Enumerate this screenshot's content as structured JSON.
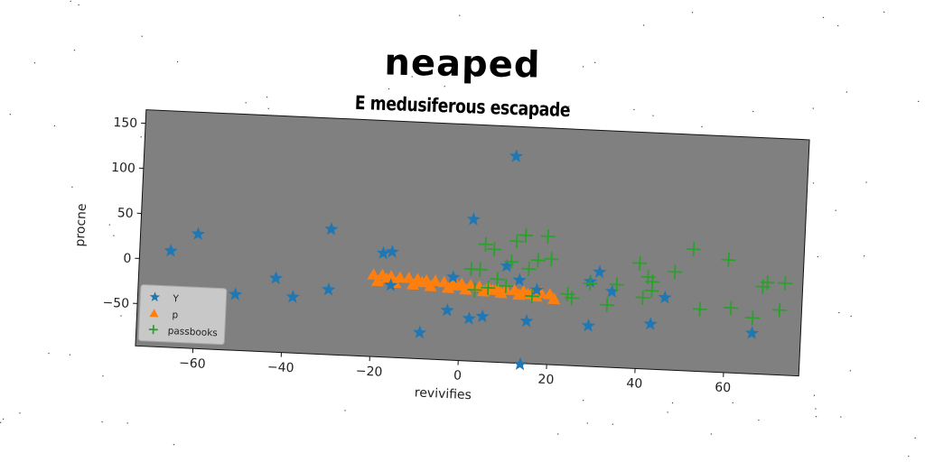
{
  "title": "neaped",
  "subtitle": "E medusiferous escapade",
  "colors": {
    "plot_background": "#808080",
    "Y": "#1f77b4",
    "p": "#ff7f0e",
    "passbooks": "#2ca02c"
  },
  "chart_data": {
    "type": "scatter",
    "xlabel": "revivifies",
    "ylabel": "procne",
    "xlim": [
      -73,
      77
    ],
    "ylim": [
      -97,
      165
    ],
    "xticks": [
      -60,
      -40,
      -20,
      0,
      20,
      40,
      60
    ],
    "yticks": [
      -50,
      0,
      50,
      100,
      150
    ],
    "grid": false,
    "legend_position": "lower-left",
    "series": [
      {
        "name": "Y",
        "marker": "star",
        "points": [
          [
            -66,
            10
          ],
          [
            -60,
            30
          ],
          [
            -51,
            -35
          ],
          [
            -42,
            -15
          ],
          [
            -38,
            -35
          ],
          [
            -30,
            -25
          ],
          [
            -30,
            42
          ],
          [
            -18,
            18
          ],
          [
            -16,
            20
          ],
          [
            -16,
            -17
          ],
          [
            -9,
            -68
          ],
          [
            -3,
            -42
          ],
          [
            -2,
            -5
          ],
          [
            2,
            60
          ],
          [
            2,
            -50
          ],
          [
            5,
            -47
          ],
          [
            10,
            10
          ],
          [
            11,
            132
          ],
          [
            13,
            -5
          ],
          [
            14,
            -98
          ],
          [
            15,
            -50
          ],
          [
            17,
            -15
          ],
          [
            29,
            -3
          ],
          [
            29,
            -52
          ],
          [
            31,
            8
          ],
          [
            34,
            -13
          ],
          [
            43,
            -47
          ],
          [
            46,
            -17
          ],
          [
            66,
            -52
          ]
        ]
      },
      {
        "name": "p",
        "marker": "triangle",
        "points": [
          [
            -20,
            -6
          ],
          [
            -18,
            -6
          ],
          [
            -16,
            -7
          ],
          [
            -14,
            -8
          ],
          [
            -12,
            -8
          ],
          [
            -10,
            -9
          ],
          [
            -8,
            -10
          ],
          [
            -6,
            -10
          ],
          [
            -4,
            -11
          ],
          [
            -2,
            -12
          ],
          [
            0,
            -12
          ],
          [
            2,
            -13
          ],
          [
            4,
            -14
          ],
          [
            6,
            -14
          ],
          [
            8,
            -15
          ],
          [
            10,
            -16
          ],
          [
            12,
            -16
          ],
          [
            14,
            -17
          ],
          [
            16,
            -18
          ],
          [
            18,
            -18
          ],
          [
            20,
            -19
          ],
          [
            -19,
            -13
          ],
          [
            -15,
            -14
          ],
          [
            -11,
            -15
          ],
          [
            -7,
            -16
          ],
          [
            -3,
            -17
          ],
          [
            1,
            -18
          ],
          [
            5,
            -19
          ],
          [
            9,
            -20
          ],
          [
            13,
            -21
          ],
          [
            17,
            -22
          ],
          [
            21,
            -24
          ],
          [
            -17,
            -10
          ],
          [
            -9,
            -12
          ],
          [
            -1,
            -14
          ],
          [
            7,
            -17
          ],
          [
            15,
            -20
          ]
        ]
      },
      {
        "name": "passbooks",
        "marker": "plus",
        "points": [
          [
            2,
            5
          ],
          [
            3,
            -18
          ],
          [
            4,
            5
          ],
          [
            5,
            33
          ],
          [
            6,
            -15
          ],
          [
            7,
            28
          ],
          [
            8,
            -5
          ],
          [
            10,
            -12
          ],
          [
            11,
            15
          ],
          [
            12,
            38
          ],
          [
            14,
            45
          ],
          [
            15,
            8
          ],
          [
            16,
            -22
          ],
          [
            17,
            18
          ],
          [
            19,
            45
          ],
          [
            20,
            20
          ],
          [
            24,
            -18
          ],
          [
            25,
            -22
          ],
          [
            29,
            -5
          ],
          [
            33,
            -28
          ],
          [
            35,
            -5
          ],
          [
            40,
            20
          ],
          [
            41,
            -18
          ],
          [
            42,
            5
          ],
          [
            43,
            -10
          ],
          [
            43,
            0
          ],
          [
            48,
            12
          ],
          [
            52,
            38
          ],
          [
            54,
            -28
          ],
          [
            60,
            28
          ],
          [
            61,
            -25
          ],
          [
            66,
            -35
          ],
          [
            68,
            0
          ],
          [
            69,
            5
          ],
          [
            72,
            -25
          ],
          [
            73,
            5
          ]
        ]
      }
    ]
  }
}
